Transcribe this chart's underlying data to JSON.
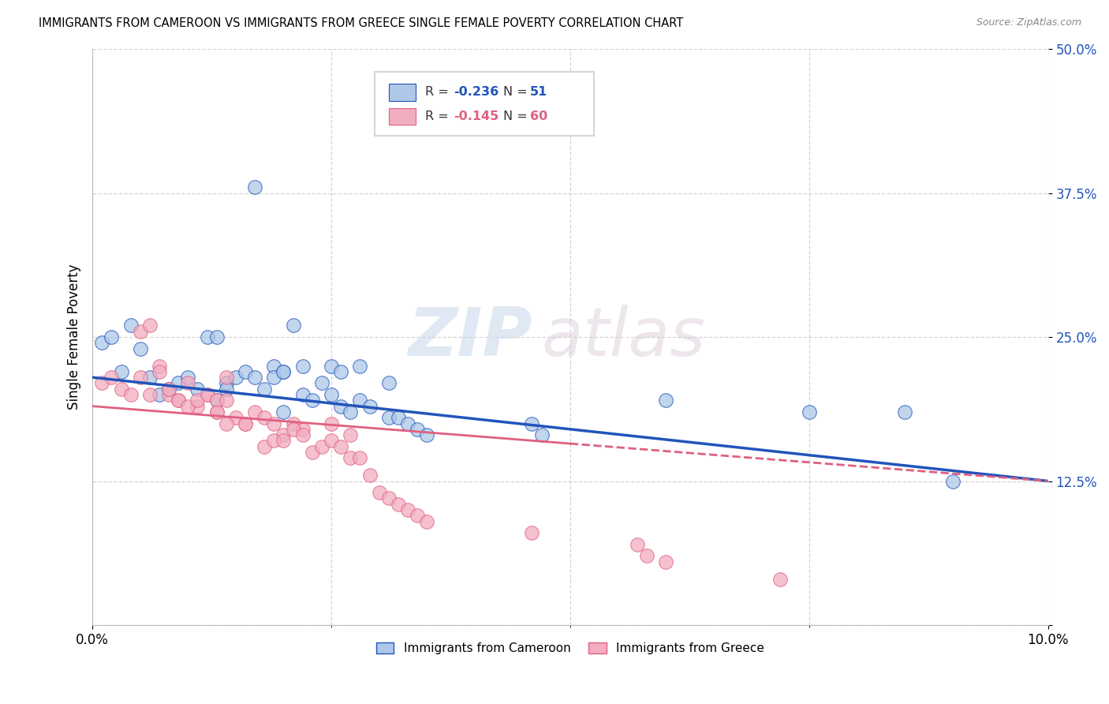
{
  "title": "IMMIGRANTS FROM CAMEROON VS IMMIGRANTS FROM GREECE SINGLE FEMALE POVERTY CORRELATION CHART",
  "source": "Source: ZipAtlas.com",
  "ylabel": "Single Female Poverty",
  "xmin": 0.0,
  "xmax": 0.1,
  "ymin": 0.0,
  "ymax": 0.5,
  "yticks": [
    0.0,
    0.125,
    0.25,
    0.375,
    0.5
  ],
  "ytick_labels": [
    "",
    "12.5%",
    "25.0%",
    "37.5%",
    "50.0%"
  ],
  "grid_color": "#d0d0d0",
  "background_color": "#ffffff",
  "watermark_zip": "ZIP",
  "watermark_atlas": "atlas",
  "legend_R_cameroon": "-0.236",
  "legend_N_cameroon": "51",
  "legend_R_greece": "-0.145",
  "legend_N_greece": "60",
  "color_cameroon": "#adc8e8",
  "color_greece": "#f2adc0",
  "line_color_cameroon": "#2255bb",
  "line_color_greece": "#e06080",
  "cameroon_x": [
    0.001,
    0.002,
    0.003,
    0.004,
    0.005,
    0.006,
    0.007,
    0.008,
    0.009,
    0.01,
    0.011,
    0.012,
    0.013,
    0.014,
    0.015,
    0.016,
    0.017,
    0.018,
    0.019,
    0.02,
    0.021,
    0.022,
    0.013,
    0.024,
    0.025,
    0.026,
    0.017,
    0.028,
    0.019,
    0.02,
    0.031,
    0.022,
    0.023,
    0.014,
    0.025,
    0.026,
    0.027,
    0.028,
    0.029,
    0.02,
    0.031,
    0.032,
    0.033,
    0.034,
    0.035,
    0.046,
    0.047,
    0.06,
    0.075,
    0.085,
    0.09
  ],
  "cameroon_y": [
    0.245,
    0.25,
    0.22,
    0.26,
    0.24,
    0.215,
    0.2,
    0.205,
    0.21,
    0.215,
    0.205,
    0.25,
    0.195,
    0.21,
    0.215,
    0.22,
    0.215,
    0.205,
    0.225,
    0.22,
    0.26,
    0.225,
    0.25,
    0.21,
    0.225,
    0.22,
    0.38,
    0.225,
    0.215,
    0.22,
    0.21,
    0.2,
    0.195,
    0.205,
    0.2,
    0.19,
    0.185,
    0.195,
    0.19,
    0.185,
    0.18,
    0.18,
    0.175,
    0.17,
    0.165,
    0.175,
    0.165,
    0.195,
    0.185,
    0.185,
    0.125
  ],
  "greece_x": [
    0.001,
    0.002,
    0.003,
    0.004,
    0.005,
    0.006,
    0.007,
    0.008,
    0.009,
    0.01,
    0.011,
    0.012,
    0.013,
    0.014,
    0.005,
    0.006,
    0.007,
    0.008,
    0.009,
    0.01,
    0.011,
    0.012,
    0.013,
    0.014,
    0.015,
    0.016,
    0.017,
    0.018,
    0.019,
    0.02,
    0.021,
    0.022,
    0.013,
    0.014,
    0.025,
    0.016,
    0.027,
    0.018,
    0.019,
    0.02,
    0.021,
    0.022,
    0.023,
    0.024,
    0.025,
    0.026,
    0.027,
    0.028,
    0.029,
    0.03,
    0.031,
    0.032,
    0.033,
    0.034,
    0.035,
    0.046,
    0.057,
    0.058,
    0.06,
    0.072
  ],
  "greece_y": [
    0.21,
    0.215,
    0.205,
    0.2,
    0.215,
    0.2,
    0.225,
    0.2,
    0.195,
    0.21,
    0.19,
    0.2,
    0.185,
    0.215,
    0.255,
    0.26,
    0.22,
    0.205,
    0.195,
    0.19,
    0.195,
    0.2,
    0.195,
    0.195,
    0.18,
    0.175,
    0.185,
    0.18,
    0.175,
    0.165,
    0.175,
    0.17,
    0.185,
    0.175,
    0.175,
    0.175,
    0.165,
    0.155,
    0.16,
    0.16,
    0.17,
    0.165,
    0.15,
    0.155,
    0.16,
    0.155,
    0.145,
    0.145,
    0.13,
    0.115,
    0.11,
    0.105,
    0.1,
    0.095,
    0.09,
    0.08,
    0.07,
    0.06,
    0.055,
    0.04
  ]
}
